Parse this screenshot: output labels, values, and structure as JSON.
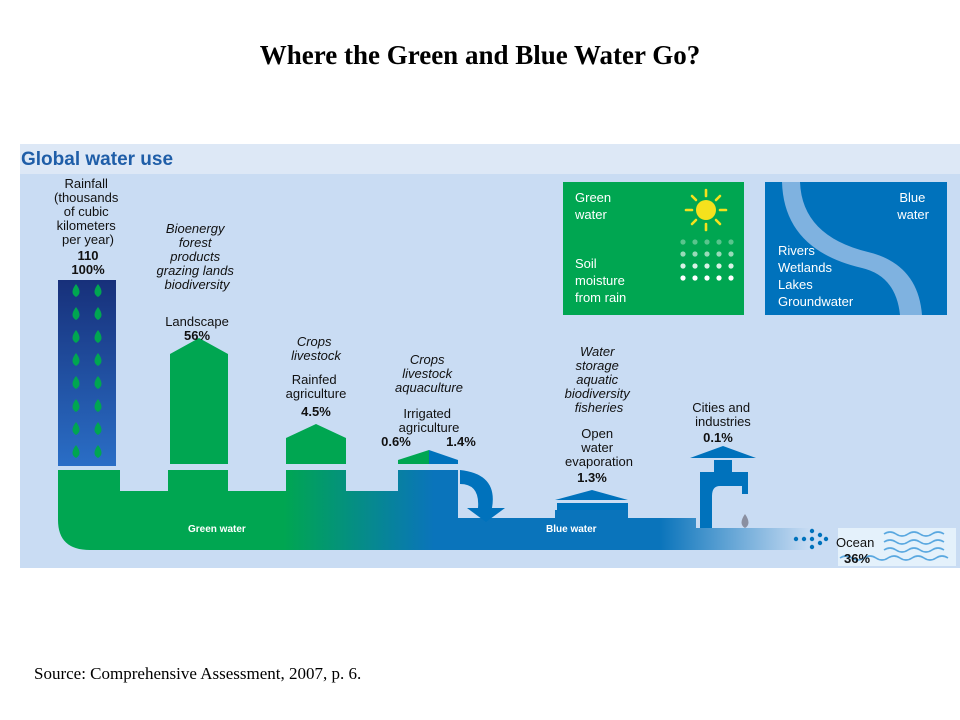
{
  "slide": {
    "title": "Where the Green and Blue Water Go?",
    "source": "Source:  Comprehensive Assessment,  2007, p. 6."
  },
  "diagram": {
    "heading": "Global water use",
    "rainfall": {
      "lines": [
        "Rainfall",
        "(thousands",
        "of cubic",
        "kilometers",
        "per year)"
      ],
      "value": "110",
      "percent": "100%"
    },
    "landscape": {
      "uses": [
        "Bioenergy",
        "forest",
        "products",
        "grazing lands",
        "biodiversity"
      ],
      "label": "Landscape",
      "percent": "56%"
    },
    "rainfed": {
      "uses": [
        "Crops",
        "livestock"
      ],
      "label": [
        "Rainfed",
        "agriculture"
      ],
      "percent": "4.5%"
    },
    "irrigated": {
      "uses": [
        "Crops",
        "livestock",
        "aquaculture"
      ],
      "label": [
        "Irrigated",
        "agriculture"
      ],
      "percent_green": "0.6%",
      "percent_blue": "1.4%"
    },
    "open_water": {
      "uses": [
        "Water",
        "storage",
        "aquatic",
        "biodiversity",
        "fisheries"
      ],
      "label": [
        "Open",
        "water",
        "evaporation"
      ],
      "percent": "1.3%"
    },
    "cities": {
      "label": [
        "Cities and",
        "industries"
      ],
      "percent": "0.1%"
    },
    "ocean": {
      "label": "Ocean",
      "percent": "36%"
    },
    "flows": {
      "green": "Green water",
      "blue": "Blue water"
    },
    "legend_green": {
      "title": [
        "Green",
        "water"
      ],
      "desc": [
        "Soil",
        "moisture",
        "from rain"
      ],
      "icon": "sun-icon"
    },
    "legend_blue": {
      "title": [
        "Blue",
        "water"
      ],
      "desc": [
        "Rivers",
        "Wetlands",
        "Lakes",
        "Groundwater"
      ]
    },
    "colors": {
      "green": "#00a651",
      "blue": "#0072bc",
      "light_blue": "#7fb2e0",
      "background": "#c9dcf3",
      "heading_band": "#dde8f6",
      "heading_text": "#1f5ea8",
      "rain_column": "#1a3c8c",
      "sun": "#f5e11d"
    }
  }
}
